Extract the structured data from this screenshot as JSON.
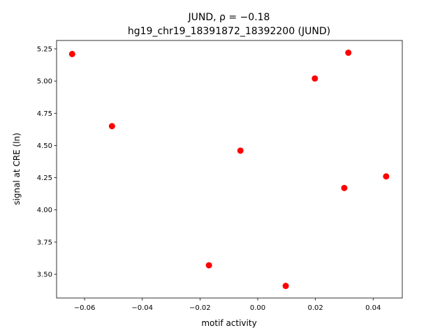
{
  "chart_data": {
    "type": "scatter",
    "title": "JUND, ρ = −0.18",
    "subtitle": "hg19_chr19_18391872_18392200 (JUND)",
    "x_label": "motif activity",
    "y_label": "signal at CRE (ln)",
    "x": [
      -0.0643,
      -0.0505,
      -0.006,
      -0.0169,
      0.0097,
      0.0198,
      0.0314,
      0.03,
      0.0445
    ],
    "values": [
      5.21,
      4.65,
      4.46,
      3.57,
      3.41,
      5.02,
      5.22,
      4.17,
      4.26
    ],
    "color": "#ff0000",
    "xlim": [
      -0.0697,
      0.0501
    ],
    "ylim": [
      3.316,
      5.315
    ],
    "xticks": [
      {
        "value": -0.06,
        "label": "−0.06"
      },
      {
        "value": -0.04,
        "label": "−0.04"
      },
      {
        "value": -0.02,
        "label": "−0.02"
      },
      {
        "value": 0,
        "label": "0.00"
      },
      {
        "value": 0.02,
        "label": "0.02"
      },
      {
        "value": 0.04,
        "label": "0.04"
      }
    ],
    "yticks": [
      {
        "value": 3.5,
        "label": "3.50"
      },
      {
        "value": 3.75,
        "label": "3.75"
      },
      {
        "value": 4,
        "label": "4.00"
      },
      {
        "value": 4.25,
        "label": "4.25"
      },
      {
        "value": 4.5,
        "label": "4.50"
      },
      {
        "value": 4.75,
        "label": "4.75"
      },
      {
        "value": 5,
        "label": "5.00"
      },
      {
        "value": 5.25,
        "label": "5.25"
      }
    ],
    "grid": false
  }
}
